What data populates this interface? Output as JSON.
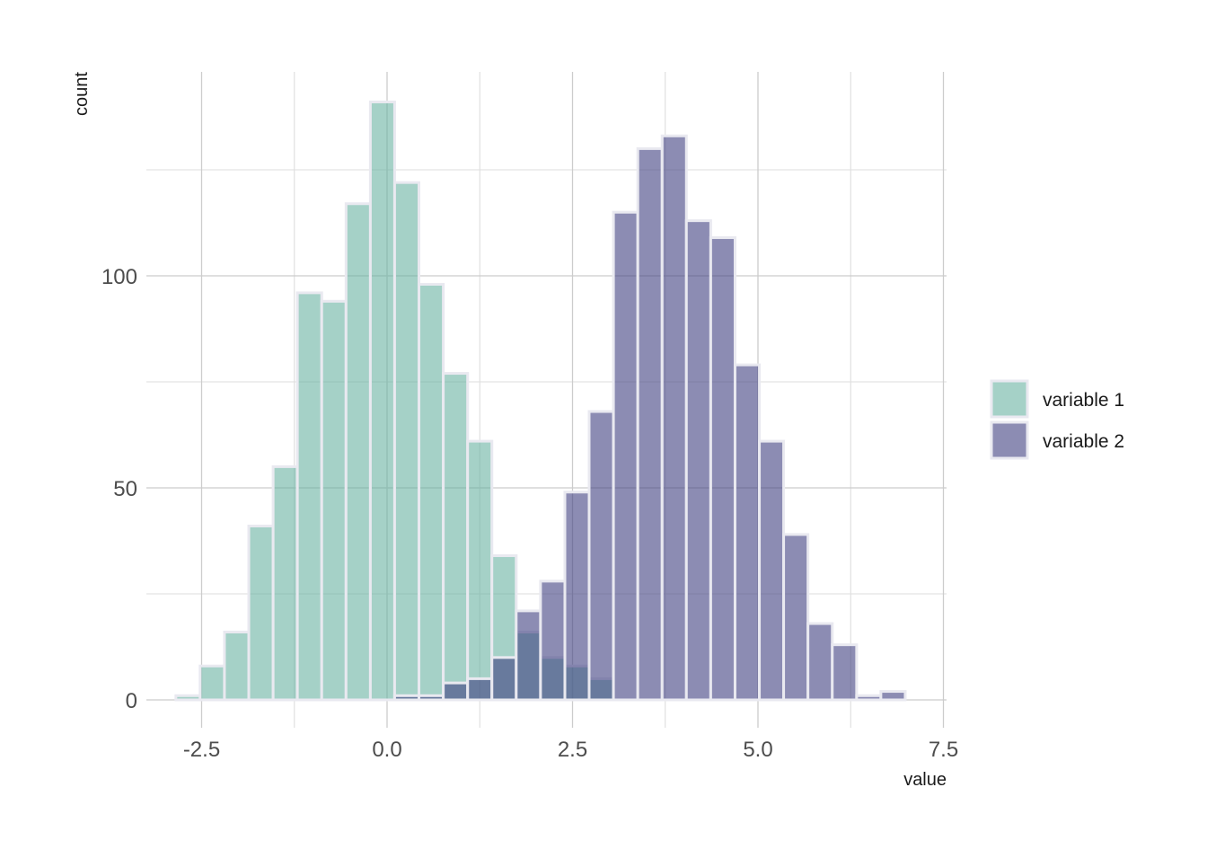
{
  "chart_data": {
    "type": "histogram",
    "xlabel": "value",
    "ylabel": "count",
    "xlim": [
      -3.1,
      7.5
    ],
    "ylim": [
      -5,
      148
    ],
    "x_ticks": [
      -2.5,
      0.0,
      2.5,
      5.0,
      7.5
    ],
    "x_tick_labels": [
      "-2.5",
      "0.0",
      "2.5",
      "5.0",
      "7.5"
    ],
    "y_ticks": [
      0,
      50,
      100
    ],
    "y_tick_labels": [
      "0",
      "50",
      "100"
    ],
    "x_minor_grid": [
      -1.25,
      1.25,
      3.75,
      6.25
    ],
    "y_minor_grid": [
      25,
      75,
      125
    ],
    "grid": true,
    "legend_position": "right",
    "bin_width": 0.3277,
    "series": [
      {
        "name": "variable 1",
        "color": "#69b3a2",
        "bins": [
          {
            "x_start": -2.847,
            "x_end": -2.52,
            "count": 1
          },
          {
            "x_start": -2.52,
            "x_end": -2.192,
            "count": 8
          },
          {
            "x_start": -2.192,
            "x_end": -1.864,
            "count": 16
          },
          {
            "x_start": -1.864,
            "x_end": -1.536,
            "count": 41
          },
          {
            "x_start": -1.536,
            "x_end": -1.209,
            "count": 55
          },
          {
            "x_start": -1.209,
            "x_end": -0.881,
            "count": 96
          },
          {
            "x_start": -0.881,
            "x_end": -0.553,
            "count": 94
          },
          {
            "x_start": -0.553,
            "x_end": -0.225,
            "count": 117
          },
          {
            "x_start": -0.225,
            "x_end": 0.102,
            "count": 141
          },
          {
            "x_start": 0.102,
            "x_end": 0.43,
            "count": 122
          },
          {
            "x_start": 0.43,
            "x_end": 0.758,
            "count": 98
          },
          {
            "x_start": 0.758,
            "x_end": 1.086,
            "count": 77
          },
          {
            "x_start": 1.086,
            "x_end": 1.413,
            "count": 61
          },
          {
            "x_start": 1.413,
            "x_end": 1.741,
            "count": 34
          },
          {
            "x_start": 1.741,
            "x_end": 2.069,
            "count": 16
          },
          {
            "x_start": 2.069,
            "x_end": 2.397,
            "count": 10
          },
          {
            "x_start": 2.397,
            "x_end": 2.724,
            "count": 8
          },
          {
            "x_start": 2.724,
            "x_end": 3.052,
            "count": 5
          }
        ]
      },
      {
        "name": "variable 2",
        "color": "#404080",
        "bins": [
          {
            "x_start": 0.102,
            "x_end": 0.43,
            "count": 1
          },
          {
            "x_start": 0.43,
            "x_end": 0.758,
            "count": 1
          },
          {
            "x_start": 0.758,
            "x_end": 1.086,
            "count": 4
          },
          {
            "x_start": 1.086,
            "x_end": 1.413,
            "count": 5
          },
          {
            "x_start": 1.413,
            "x_end": 1.741,
            "count": 10
          },
          {
            "x_start": 1.741,
            "x_end": 2.069,
            "count": 21
          },
          {
            "x_start": 2.069,
            "x_end": 2.397,
            "count": 28
          },
          {
            "x_start": 2.397,
            "x_end": 2.724,
            "count": 49
          },
          {
            "x_start": 2.724,
            "x_end": 3.052,
            "count": 68
          },
          {
            "x_start": 3.052,
            "x_end": 3.38,
            "count": 115
          },
          {
            "x_start": 3.38,
            "x_end": 3.708,
            "count": 130
          },
          {
            "x_start": 3.708,
            "x_end": 4.035,
            "count": 133
          },
          {
            "x_start": 4.035,
            "x_end": 4.363,
            "count": 113
          },
          {
            "x_start": 4.363,
            "x_end": 4.691,
            "count": 109
          },
          {
            "x_start": 4.691,
            "x_end": 5.019,
            "count": 79
          },
          {
            "x_start": 5.019,
            "x_end": 5.346,
            "count": 61
          },
          {
            "x_start": 5.346,
            "x_end": 5.674,
            "count": 39
          },
          {
            "x_start": 5.674,
            "x_end": 6.002,
            "count": 18
          },
          {
            "x_start": 6.002,
            "x_end": 6.33,
            "count": 13
          },
          {
            "x_start": 6.33,
            "x_end": 6.657,
            "count": 1
          },
          {
            "x_start": 6.657,
            "x_end": 6.985,
            "count": 2
          }
        ]
      }
    ]
  },
  "style": {
    "fill_opacity": 0.6,
    "bar_outline_color": "#e9e9f0",
    "grid_major_color": "#cccccc",
    "grid_minor_color": "#dedede"
  }
}
